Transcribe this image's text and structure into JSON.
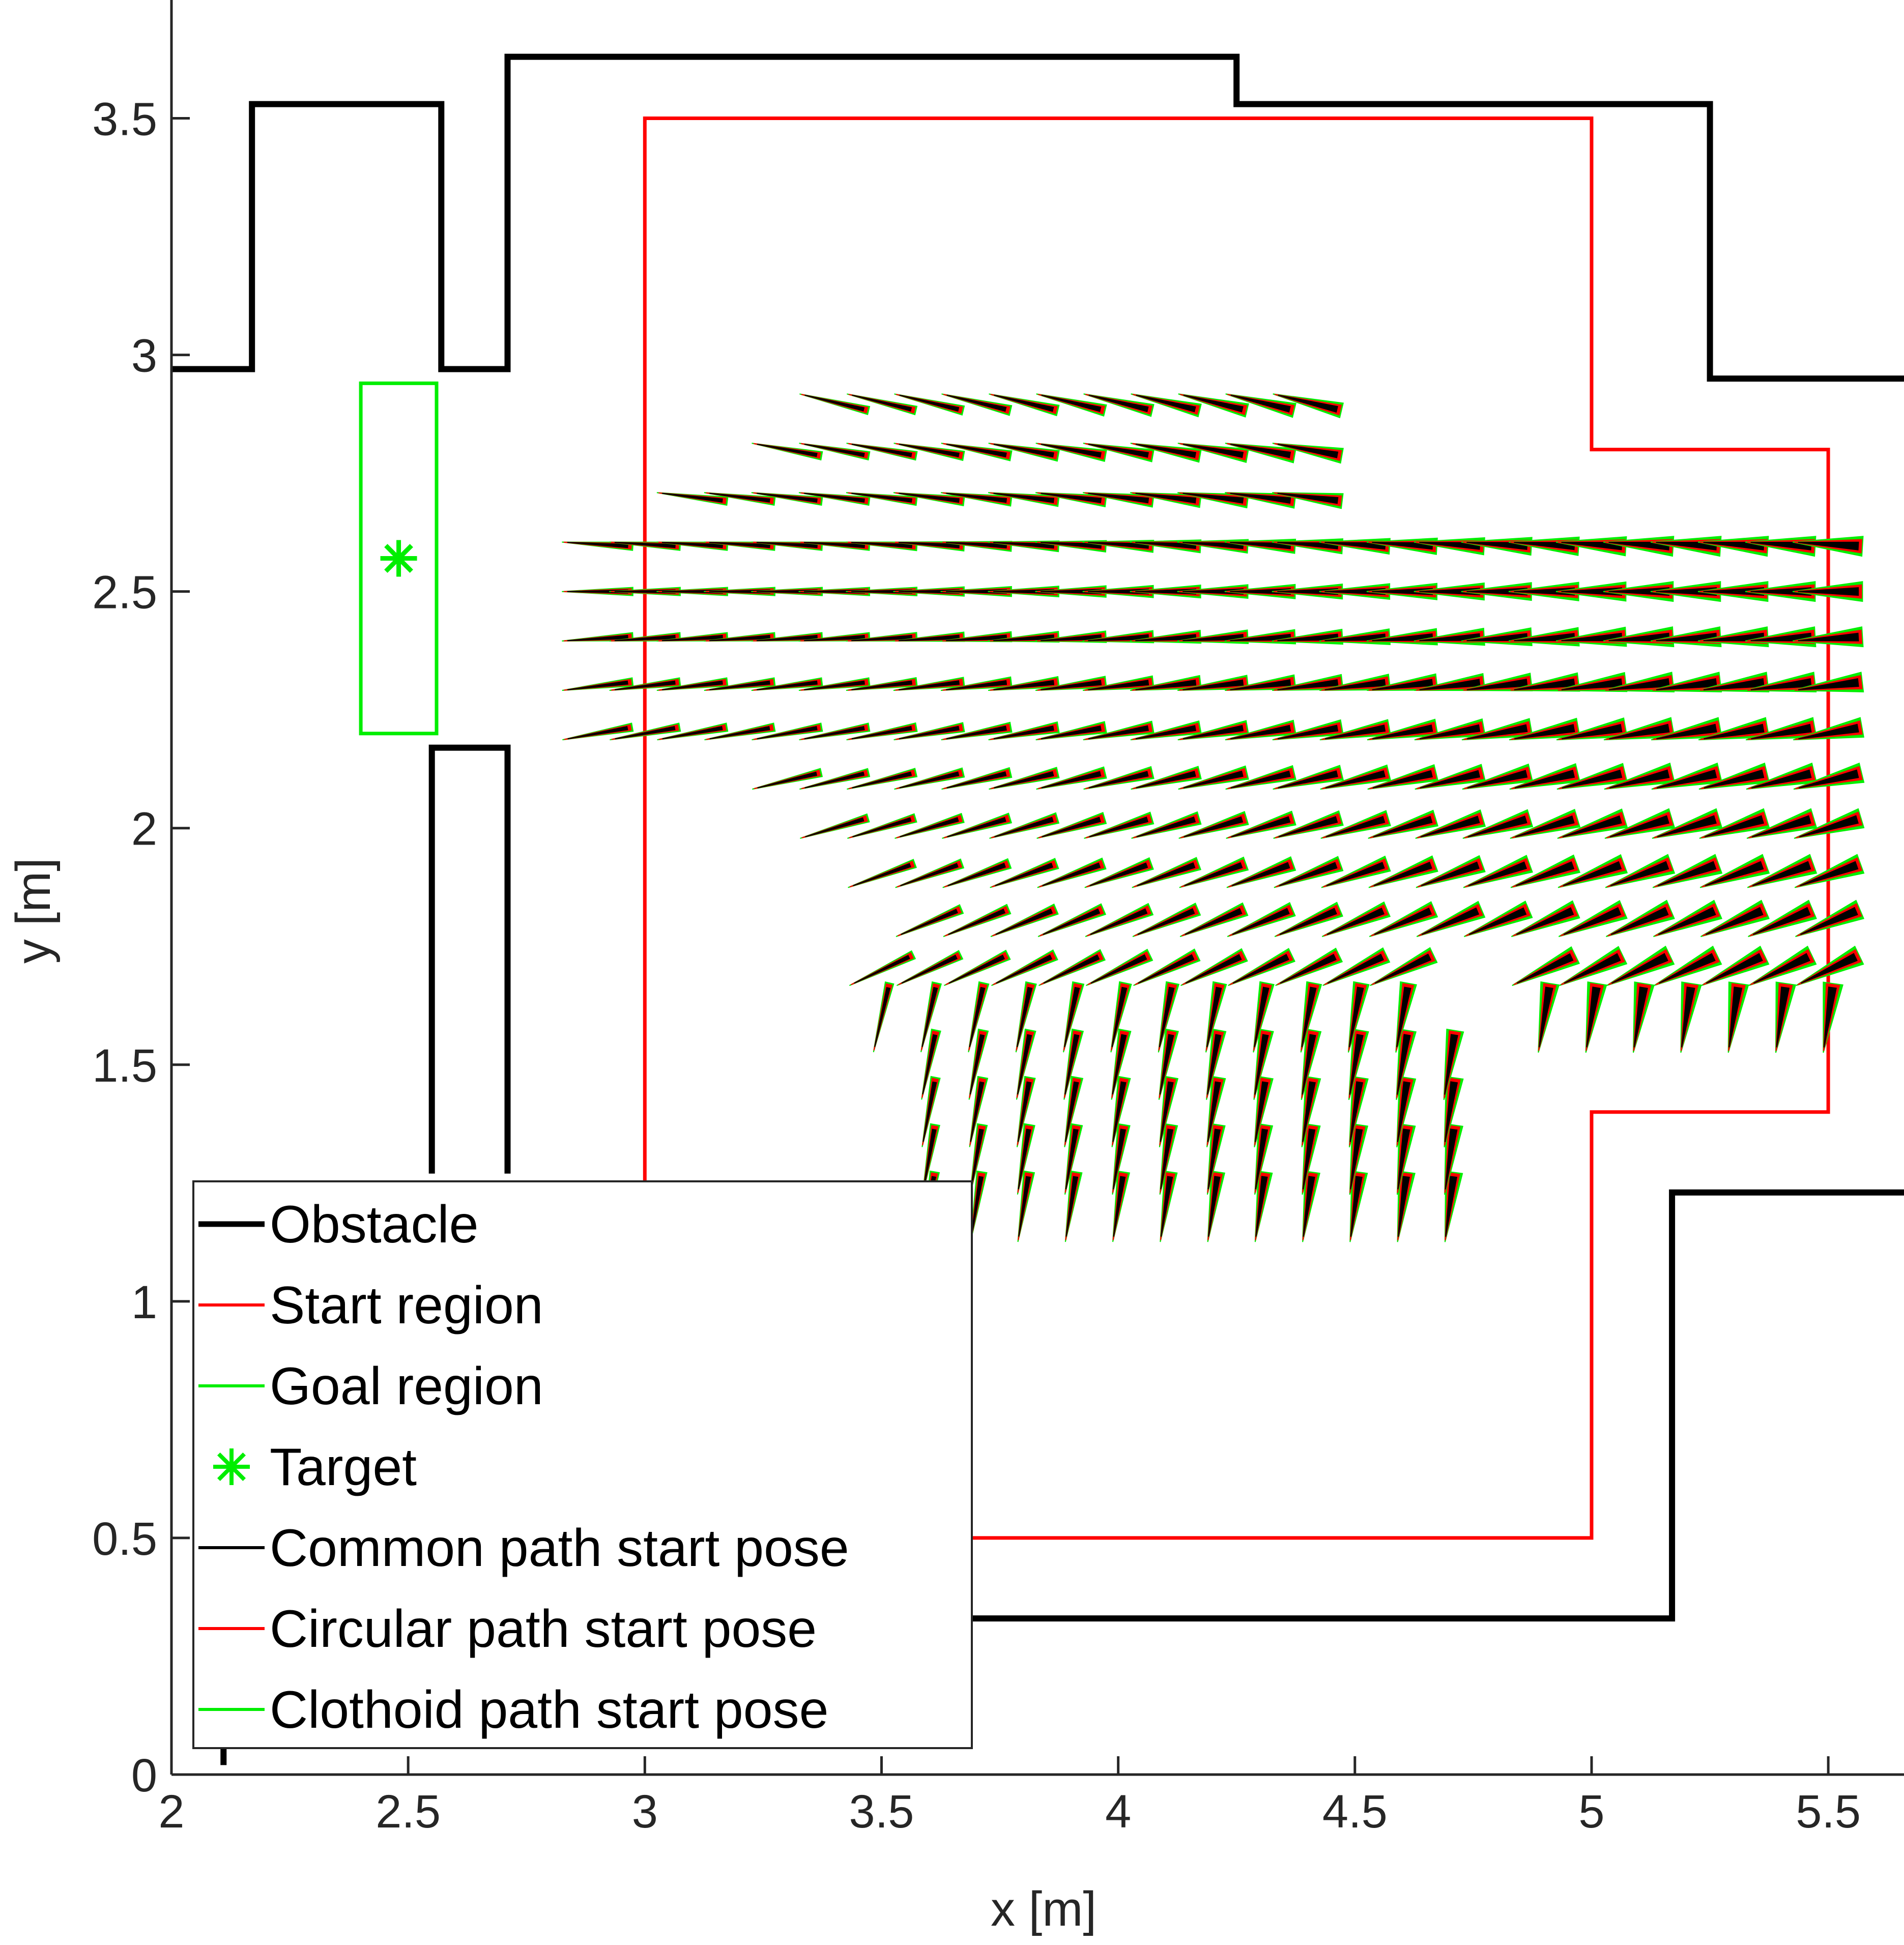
{
  "chart_data": {
    "type": "line",
    "xlabel": "x [m]",
    "ylabel": "y [m]",
    "xlim": [
      2,
      5.66
    ],
    "ylim": [
      0,
      3.75
    ],
    "xticks": [
      "2",
      "2.5",
      "3",
      "3.5",
      "4",
      "4.5",
      "5",
      "5.5"
    ],
    "yticks": [
      "0",
      "0.5",
      "1",
      "1.5",
      "2",
      "2.5",
      "3",
      "3.5"
    ],
    "xtick_values": [
      2,
      2.5,
      3,
      3.5,
      4,
      4.5,
      5,
      5.5
    ],
    "ytick_values": [
      0,
      0.5,
      1,
      1.5,
      2,
      2.5,
      3,
      3.5
    ],
    "grid": false,
    "legend_position": "bottom-left",
    "colors": {
      "obstacle": "#000000",
      "start_region": "#ff0000",
      "goal_region": "#00ee00",
      "target": "#00ee00",
      "common": "#000000",
      "circular": "#ff0000",
      "clothoid": "#00ee00"
    },
    "legend": [
      {
        "label": "Obstacle",
        "color": "#000000",
        "marker": "line-thick"
      },
      {
        "label": "Start region",
        "color": "#ff0000",
        "marker": "line"
      },
      {
        "label": "Goal region",
        "color": "#00ee00",
        "marker": "line"
      },
      {
        "label": "Target",
        "color": "#00ee00",
        "marker": "asterisk"
      },
      {
        "label": "Common path start pose",
        "color": "#000000",
        "marker": "line"
      },
      {
        "label": "Circular path start pose",
        "color": "#ff0000",
        "marker": "line"
      },
      {
        "label": "Clothoid path start pose",
        "color": "#00ee00",
        "marker": "line"
      }
    ],
    "obstacles": [
      [
        [
          2,
          2.97
        ],
        [
          2.17,
          2.97
        ],
        [
          2.17,
          3.53
        ],
        [
          2.57,
          3.53
        ],
        [
          2.57,
          2.97
        ],
        [
          2.71,
          2.97
        ],
        [
          2.71,
          3.63
        ],
        [
          4.25,
          3.63
        ],
        [
          4.25,
          3.53
        ],
        [
          5.25,
          3.53
        ],
        [
          5.25,
          2.95
        ],
        [
          5.66,
          2.95
        ]
      ],
      [
        [
          2.55,
          1.27
        ],
        [
          2.55,
          2.17
        ],
        [
          2.71,
          2.17
        ],
        [
          2.71,
          1.27
        ]
      ],
      [
        [
          3.67,
          0.33
        ],
        [
          5.17,
          0.33
        ],
        [
          5.17,
          1.23
        ],
        [
          5.66,
          1.23
        ]
      ],
      [
        [
          2.11,
          0.06
        ],
        [
          2.11,
          0.02
        ]
      ]
    ],
    "start_region": [
      [
        3,
        1.25
      ],
      [
        3,
        3.5
      ],
      [
        5,
        3.5
      ],
      [
        5,
        2.8
      ],
      [
        5.5,
        2.8
      ],
      [
        5.5,
        1.4
      ],
      [
        5,
        1.4
      ],
      [
        5,
        0.5
      ],
      [
        3.67,
        0.5
      ]
    ],
    "goal_region": [
      [
        2.4,
        2.2
      ],
      [
        2.56,
        2.2
      ],
      [
        2.56,
        2.94
      ],
      [
        2.4,
        2.94
      ]
    ],
    "target": [
      2.48,
      2.57
    ],
    "pose_grid": {
      "x_range": [
        2.9,
        5.5
      ],
      "y_range": [
        1.2,
        3.0
      ],
      "spacing": 0.1
    }
  }
}
